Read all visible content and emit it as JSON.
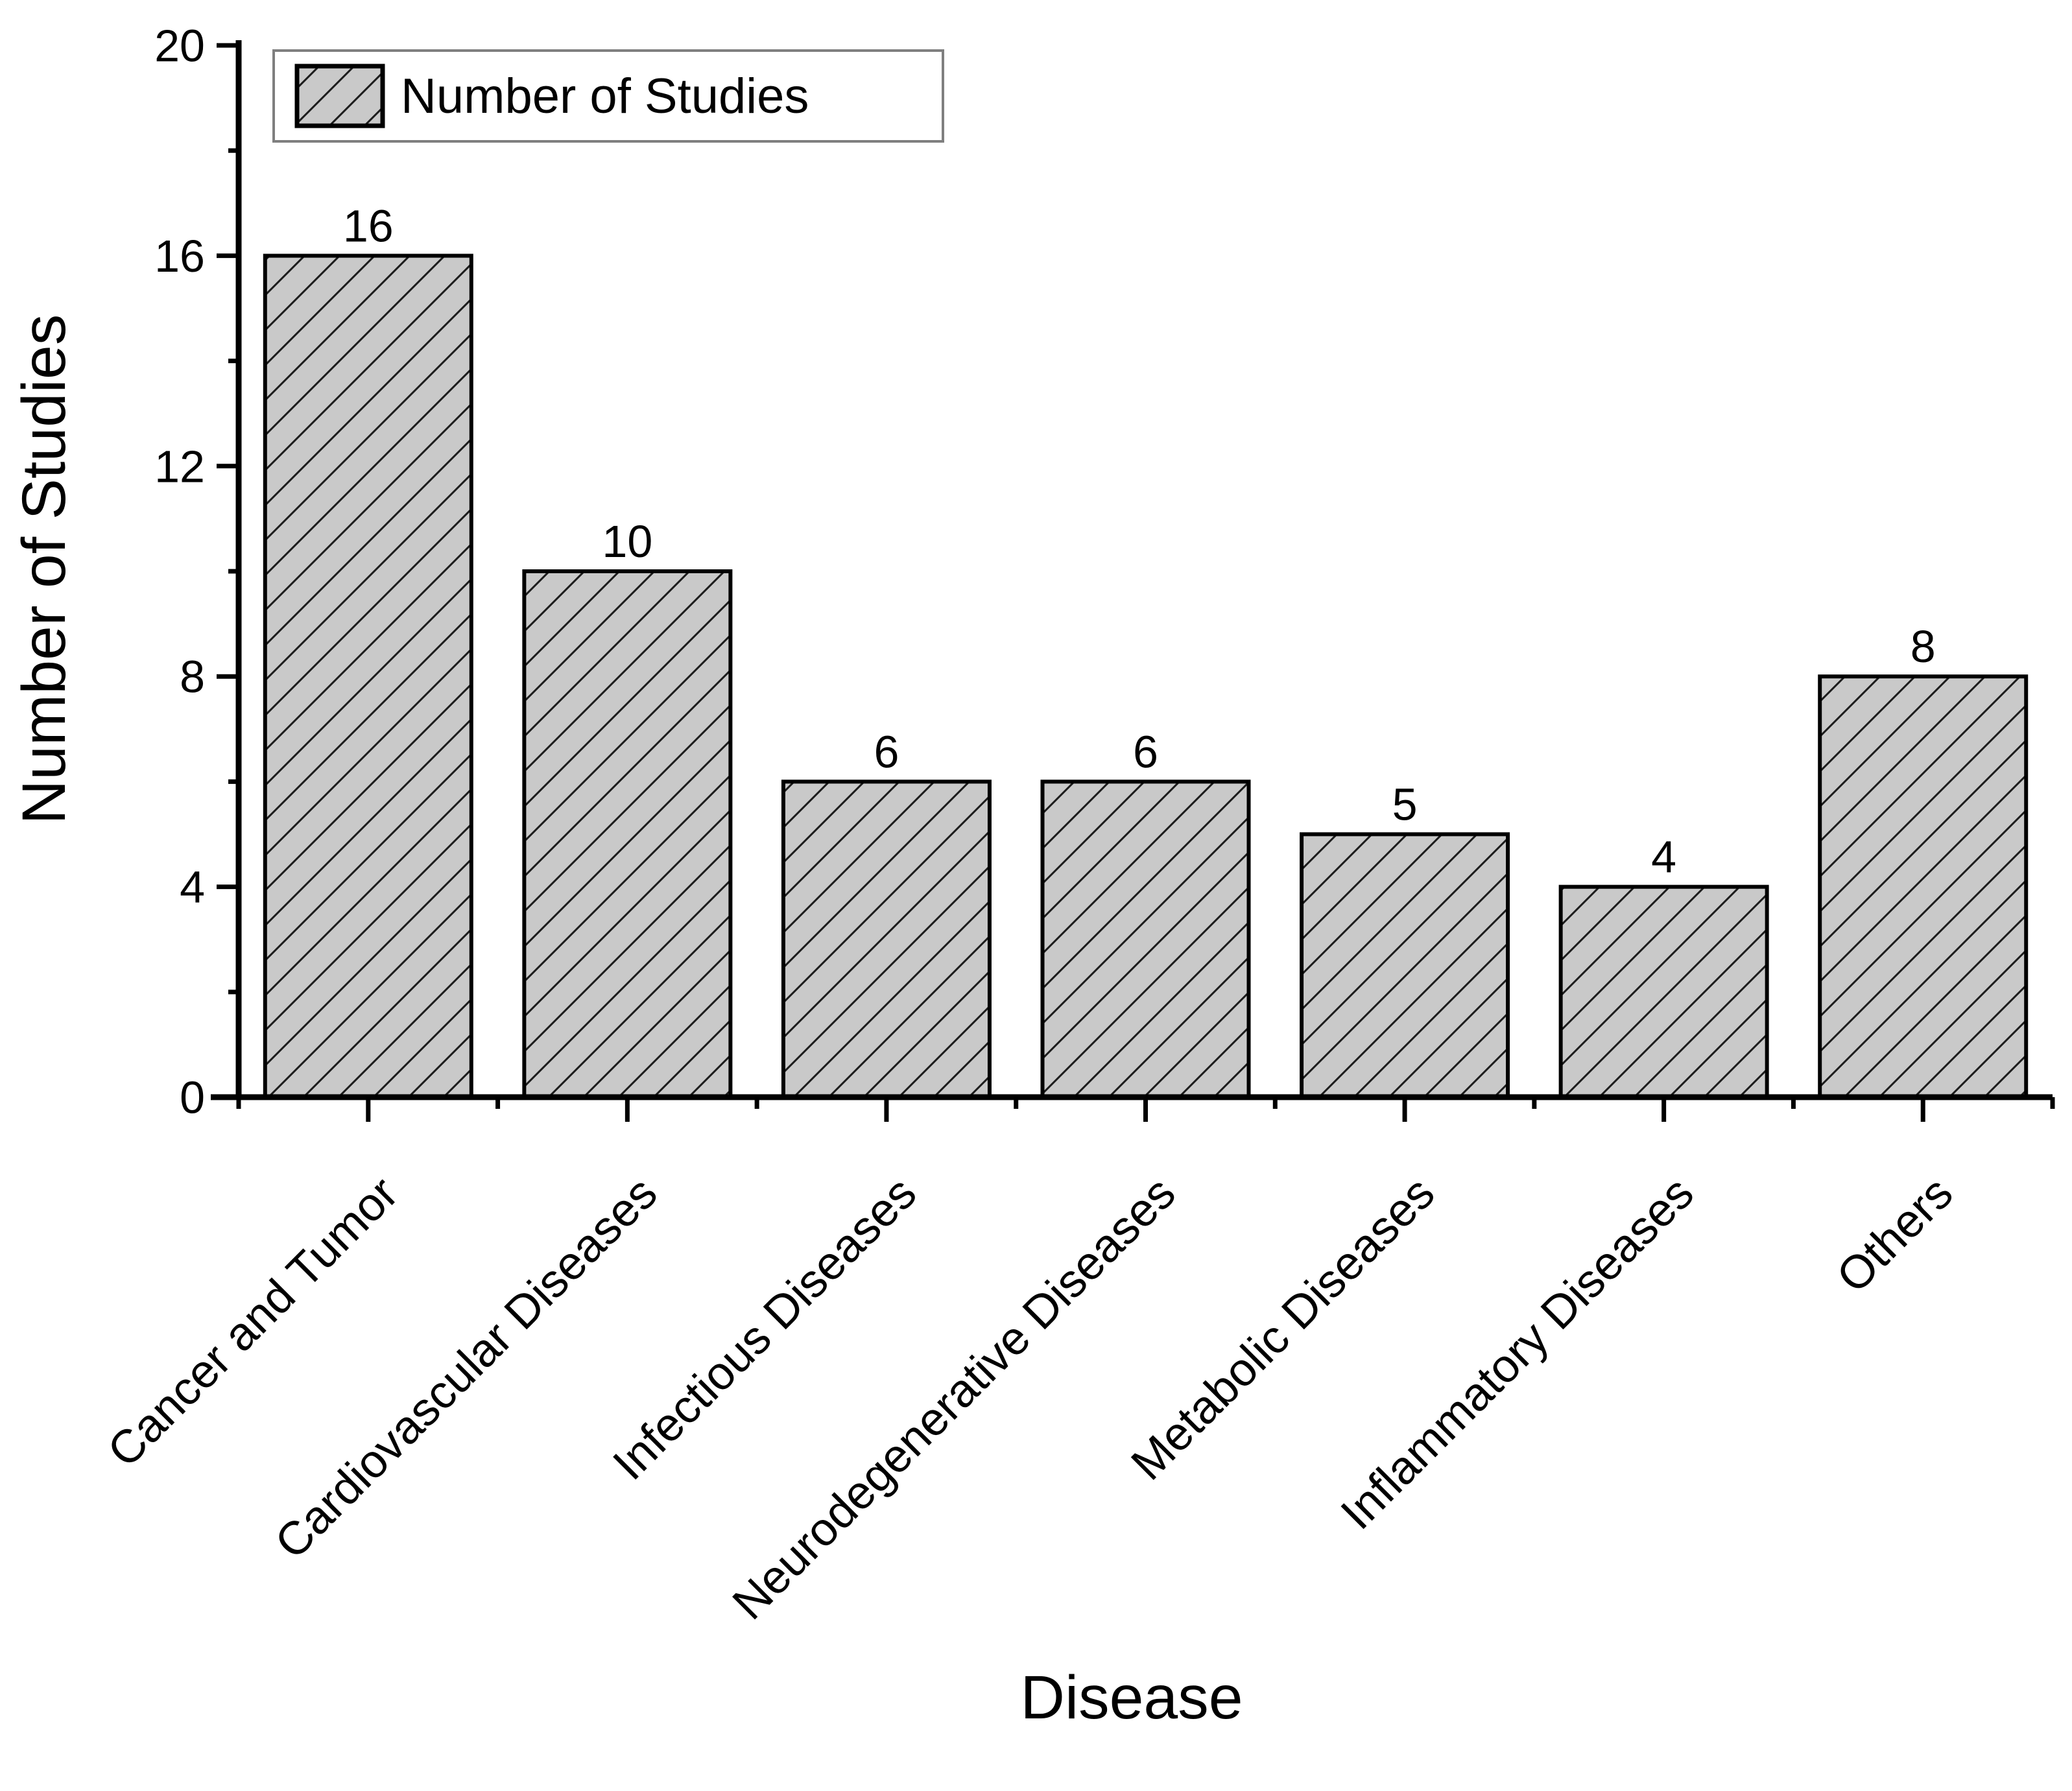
{
  "chart_data": {
    "type": "bar",
    "title": "",
    "legend": "Number of Studies",
    "legend_position": "top-left",
    "xlabel": "Disease",
    "ylabel": "Number of Studies",
    "categories": [
      "Cancer and Tumor",
      "Cardiovascular Diseases",
      "Infectious Diseases",
      "Neurodegenerative Diseases",
      "Metabolic Diseases",
      "Inflammatory Diseases",
      "Others"
    ],
    "values": [
      16,
      10,
      6,
      6,
      5,
      4,
      8
    ],
    "value_labels": [
      "16",
      "10",
      "6",
      "6",
      "5",
      "4",
      "8"
    ],
    "ylim": [
      0,
      20
    ],
    "y_major_ticks": [
      0,
      4,
      8,
      12,
      16,
      20
    ],
    "y_minor_ticks": [
      2,
      6,
      10,
      14,
      18
    ],
    "grid": false,
    "x_tick_label_rotation_deg": 45,
    "bar_fill_color": "#c9c9c9",
    "hatch_style": "forward-diagonal",
    "hatch_line_color": "#1c1c1c",
    "bar_edge_color": "#000000",
    "axis_color": "#000000",
    "legend_border_color": "#7f7f7f",
    "text_color": "#000000"
  }
}
